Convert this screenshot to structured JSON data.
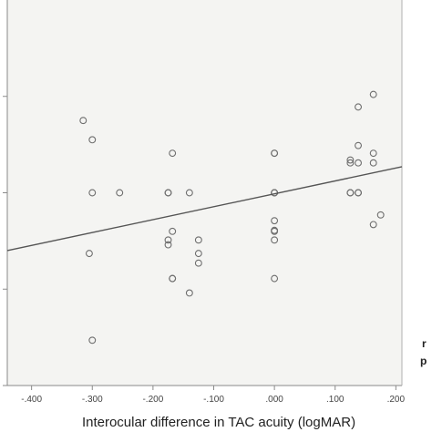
{
  "chart_data": {
    "type": "scatter",
    "title": "",
    "xlabel": "Interocular difference in TAC acuity (logMAR)",
    "ylabel": "",
    "xlim": [
      -0.44,
      0.21
    ],
    "ylim": [
      -1.0,
      1.0
    ],
    "x_ticks": [
      -0.4,
      -0.3,
      -0.2,
      -0.1,
      0.0,
      0.1,
      0.2
    ],
    "x_tick_labels": [
      "-.400",
      "-.300",
      "-.200",
      "-.100",
      ".000",
      ".100",
      ".200"
    ],
    "y_ticks": [
      -1.0,
      -0.5,
      0.0,
      0.5
    ],
    "grid": false,
    "legend": "none",
    "colors": {
      "plot_background": "#f4f4f2",
      "point_stroke": "#6e6e6e",
      "fit_line": "#555555",
      "axis": "#8a8a8a"
    },
    "fit_line": {
      "x": [
        -0.44,
        0.21
      ],
      "y": [
        -0.3,
        0.135
      ]
    },
    "points": [
      {
        "x": -0.315,
        "y": 0.375
      },
      {
        "x": -0.3,
        "y": 0.275
      },
      {
        "x": -0.3,
        "y": 0.0
      },
      {
        "x": -0.305,
        "y": -0.315
      },
      {
        "x": -0.3,
        "y": -0.765
      },
      {
        "x": -0.255,
        "y": 0.0
      },
      {
        "x": -0.175,
        "y": 0.0
      },
      {
        "x": -0.175,
        "y": 0.0
      },
      {
        "x": -0.168,
        "y": 0.205
      },
      {
        "x": -0.14,
        "y": 0.0
      },
      {
        "x": -0.168,
        "y": -0.2
      },
      {
        "x": -0.175,
        "y": -0.245
      },
      {
        "x": -0.175,
        "y": -0.27
      },
      {
        "x": -0.125,
        "y": -0.245
      },
      {
        "x": -0.125,
        "y": -0.315
      },
      {
        "x": -0.125,
        "y": -0.365
      },
      {
        "x": -0.168,
        "y": -0.445
      },
      {
        "x": -0.168,
        "y": -0.445
      },
      {
        "x": -0.14,
        "y": -0.52
      },
      {
        "x": 0.0,
        "y": 0.205
      },
      {
        "x": 0.0,
        "y": 0.205
      },
      {
        "x": 0.0,
        "y": 0.0
      },
      {
        "x": 0.0,
        "y": 0.0
      },
      {
        "x": 0.0,
        "y": 0.0
      },
      {
        "x": 0.0,
        "y": -0.145
      },
      {
        "x": 0.0,
        "y": -0.195
      },
      {
        "x": 0.0,
        "y": -0.2
      },
      {
        "x": 0.0,
        "y": -0.245
      },
      {
        "x": 0.0,
        "y": -0.445
      },
      {
        "x": 0.125,
        "y": 0.0
      },
      {
        "x": 0.125,
        "y": 0.0
      },
      {
        "x": 0.125,
        "y": 0.155
      },
      {
        "x": 0.125,
        "y": 0.17
      },
      {
        "x": 0.138,
        "y": 0.0
      },
      {
        "x": 0.138,
        "y": 0.0
      },
      {
        "x": 0.138,
        "y": 0.155
      },
      {
        "x": 0.138,
        "y": 0.245
      },
      {
        "x": 0.138,
        "y": 0.445
      },
      {
        "x": 0.163,
        "y": 0.51
      },
      {
        "x": 0.163,
        "y": 0.205
      },
      {
        "x": 0.163,
        "y": 0.155
      },
      {
        "x": 0.163,
        "y": -0.165
      },
      {
        "x": 0.175,
        "y": -0.115
      }
    ]
  },
  "side_note": {
    "line1": "r",
    "line2": "p"
  }
}
